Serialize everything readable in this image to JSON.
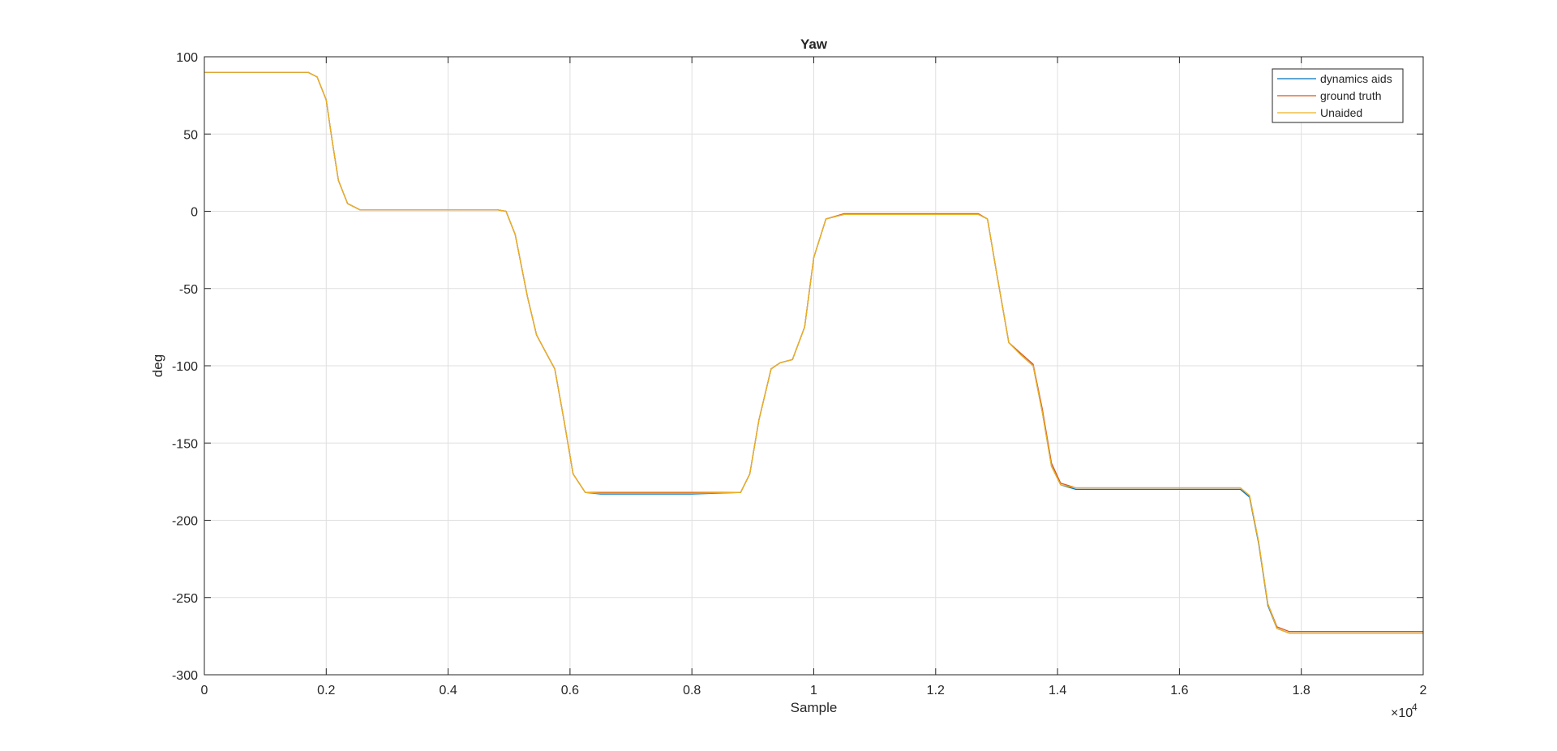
{
  "chart_data": {
    "type": "line",
    "title": "Yaw",
    "xlabel": "Sample",
    "ylabel": "deg",
    "xlim": [
      0,
      20000
    ],
    "ylim": [
      -300,
      100
    ],
    "x_exponent_label": "×10",
    "x_exponent_power": "4",
    "x_ticks": [
      {
        "value": 0,
        "label": "0"
      },
      {
        "value": 2000,
        "label": "0.2"
      },
      {
        "value": 4000,
        "label": "0.4"
      },
      {
        "value": 6000,
        "label": "0.6"
      },
      {
        "value": 8000,
        "label": "0.8"
      },
      {
        "value": 10000,
        "label": "1"
      },
      {
        "value": 12000,
        "label": "1.2"
      },
      {
        "value": 14000,
        "label": "1.4"
      },
      {
        "value": 16000,
        "label": "1.6"
      },
      {
        "value": 18000,
        "label": "1.8"
      },
      {
        "value": 20000,
        "label": "2"
      }
    ],
    "y_ticks": [
      {
        "value": 100,
        "label": "100"
      },
      {
        "value": 50,
        "label": "50"
      },
      {
        "value": 0,
        "label": "0"
      },
      {
        "value": -50,
        "label": "-50"
      },
      {
        "value": -100,
        "label": "-100"
      },
      {
        "value": -150,
        "label": "-150"
      },
      {
        "value": -200,
        "label": "-200"
      },
      {
        "value": -250,
        "label": "-250"
      },
      {
        "value": -300,
        "label": "-300"
      }
    ],
    "grid": true,
    "legend_position": "top-right",
    "series": [
      {
        "name": "dynamics aids",
        "color": "#0072BD",
        "x": [
          0,
          1700,
          1850,
          2000,
          2100,
          2200,
          2350,
          2550,
          3000,
          4800,
          4950,
          5100,
          5300,
          5450,
          5600,
          5750,
          5900,
          6050,
          6250,
          6500,
          8000,
          8800,
          8950,
          9100,
          9300,
          9450,
          9650,
          9850,
          10000,
          10200,
          10500,
          12700,
          12850,
          13000,
          13200,
          13400,
          13600,
          13750,
          13900,
          14050,
          14300,
          15000,
          17000,
          17150,
          17300,
          17450,
          17600,
          17800,
          20000
        ],
        "y": [
          90,
          90,
          87,
          72,
          45,
          20,
          5,
          1,
          1,
          1,
          0,
          -15,
          -55,
          -80,
          -91,
          -102,
          -135,
          -170,
          -182,
          -183,
          -183,
          -182,
          -170,
          -135,
          -102,
          -98,
          -96,
          -75,
          -30,
          -5,
          -2,
          -2,
          -5,
          -40,
          -85,
          -93,
          -100,
          -130,
          -165,
          -177,
          -180,
          -180,
          -180,
          -185,
          -215,
          -255,
          -270,
          -273,
          -273
        ]
      },
      {
        "name": "ground truth",
        "color": "#D95319",
        "x": [
          0,
          1700,
          1850,
          2000,
          2100,
          2200,
          2350,
          2550,
          3000,
          4800,
          4950,
          5100,
          5300,
          5450,
          5600,
          5750,
          5900,
          6050,
          6250,
          6500,
          8000,
          8800,
          8950,
          9100,
          9300,
          9450,
          9650,
          9850,
          10000,
          10200,
          10500,
          12700,
          12850,
          13000,
          13200,
          13400,
          13600,
          13750,
          13900,
          14050,
          14300,
          15000,
          17000,
          17150,
          17300,
          17450,
          17600,
          17800,
          20000
        ],
        "y": [
          90,
          90,
          87,
          72,
          45,
          20,
          5,
          1,
          1,
          1,
          0,
          -15,
          -55,
          -80,
          -91,
          -102,
          -135,
          -170,
          -182,
          -182,
          -182,
          -182,
          -170,
          -135,
          -102,
          -98,
          -96,
          -75,
          -30,
          -5,
          -1.5,
          -1.5,
          -5,
          -40,
          -85,
          -92,
          -99,
          -128,
          -163,
          -176,
          -179,
          -179,
          -179,
          -184,
          -214,
          -254,
          -269,
          -272,
          -272
        ]
      },
      {
        "name": "Unaided",
        "color": "#EDB120",
        "x": [
          0,
          1700,
          1850,
          2000,
          2100,
          2200,
          2350,
          2550,
          3000,
          4800,
          4950,
          5100,
          5300,
          5450,
          5600,
          5750,
          5900,
          6050,
          6250,
          6500,
          8000,
          8800,
          8950,
          9100,
          9300,
          9450,
          9650,
          9850,
          10000,
          10200,
          10500,
          12700,
          12850,
          13000,
          13200,
          13400,
          13600,
          13750,
          13900,
          14050,
          14300,
          15000,
          17000,
          17150,
          17300,
          17450,
          17600,
          17800,
          20000
        ],
        "y": [
          90,
          90,
          87,
          72,
          45,
          20,
          5,
          1,
          1,
          1,
          0,
          -15,
          -55,
          -80,
          -91,
          -102,
          -135,
          -170,
          -182,
          -182.5,
          -182.5,
          -182,
          -170,
          -135,
          -102,
          -98,
          -96,
          -75,
          -30,
          -5,
          -2,
          -2,
          -5,
          -40,
          -85,
          -93,
          -100,
          -130,
          -165,
          -177,
          -179,
          -179,
          -179,
          -184,
          -214,
          -254,
          -270,
          -273,
          -273
        ]
      }
    ]
  }
}
